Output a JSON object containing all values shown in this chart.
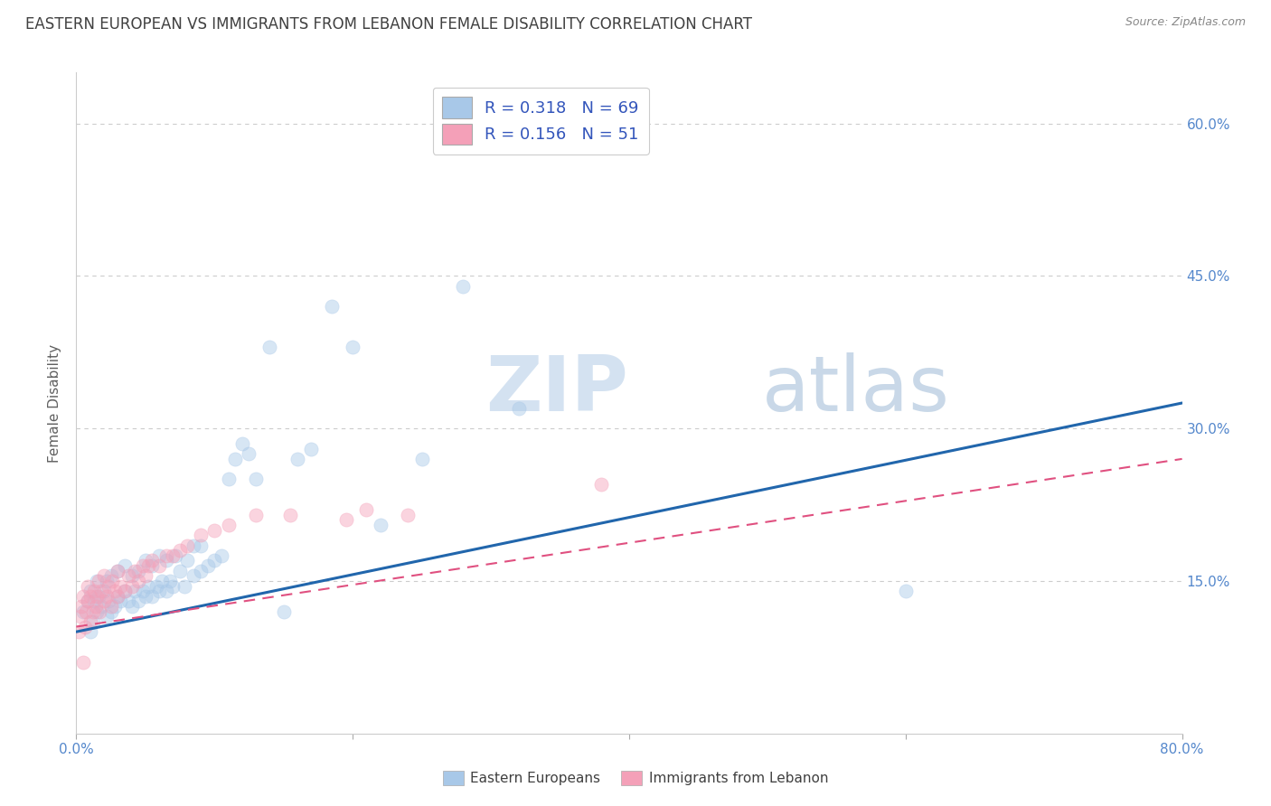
{
  "title": "EASTERN EUROPEAN VS IMMIGRANTS FROM LEBANON FEMALE DISABILITY CORRELATION CHART",
  "source": "Source: ZipAtlas.com",
  "ylabel": "Female Disability",
  "xlim": [
    0.0,
    0.8
  ],
  "ylim": [
    0.0,
    0.65
  ],
  "ytick_positions": [
    0.15,
    0.3,
    0.45,
    0.6
  ],
  "ytick_labels": [
    "15.0%",
    "30.0%",
    "45.0%",
    "60.0%"
  ],
  "grid_yticks": [
    0.15,
    0.3,
    0.45,
    0.6
  ],
  "blue_color": "#a8c8e8",
  "pink_color": "#f4a0b8",
  "blue_line_color": "#2166ac",
  "pink_line_color": "#e05080",
  "legend_R1": "R = 0.318",
  "legend_N1": "N = 69",
  "legend_R2": "R = 0.156",
  "legend_N2": "N = 51",
  "legend_label1": "Eastern Europeans",
  "legend_label2": "Immigrants from Lebanon",
  "watermark_zip": "ZIP",
  "watermark_atlas": "atlas",
  "blue_scatter_x": [
    0.005,
    0.008,
    0.01,
    0.01,
    0.012,
    0.013,
    0.015,
    0.015,
    0.016,
    0.018,
    0.02,
    0.022,
    0.022,
    0.023,
    0.025,
    0.025,
    0.028,
    0.03,
    0.03,
    0.032,
    0.035,
    0.035,
    0.038,
    0.04,
    0.04,
    0.042,
    0.045,
    0.045,
    0.048,
    0.05,
    0.05,
    0.052,
    0.055,
    0.055,
    0.058,
    0.06,
    0.06,
    0.062,
    0.065,
    0.065,
    0.068,
    0.07,
    0.072,
    0.075,
    0.078,
    0.08,
    0.085,
    0.085,
    0.09,
    0.09,
    0.095,
    0.1,
    0.105,
    0.11,
    0.115,
    0.12,
    0.125,
    0.13,
    0.14,
    0.15,
    0.16,
    0.17,
    0.185,
    0.2,
    0.22,
    0.25,
    0.28,
    0.32,
    0.6
  ],
  "blue_scatter_y": [
    0.12,
    0.13,
    0.1,
    0.14,
    0.11,
    0.13,
    0.12,
    0.15,
    0.135,
    0.125,
    0.14,
    0.115,
    0.15,
    0.13,
    0.12,
    0.155,
    0.125,
    0.135,
    0.16,
    0.13,
    0.14,
    0.165,
    0.13,
    0.125,
    0.155,
    0.14,
    0.13,
    0.16,
    0.14,
    0.135,
    0.17,
    0.145,
    0.135,
    0.165,
    0.145,
    0.14,
    0.175,
    0.15,
    0.14,
    0.17,
    0.15,
    0.145,
    0.175,
    0.16,
    0.145,
    0.17,
    0.155,
    0.185,
    0.16,
    0.185,
    0.165,
    0.17,
    0.175,
    0.25,
    0.27,
    0.285,
    0.275,
    0.25,
    0.38,
    0.12,
    0.27,
    0.28,
    0.42,
    0.38,
    0.205,
    0.27,
    0.44,
    0.32,
    0.14
  ],
  "pink_scatter_x": [
    0.002,
    0.003,
    0.004,
    0.005,
    0.006,
    0.007,
    0.008,
    0.008,
    0.01,
    0.01,
    0.012,
    0.013,
    0.014,
    0.015,
    0.016,
    0.017,
    0.018,
    0.02,
    0.02,
    0.022,
    0.023,
    0.025,
    0.026,
    0.028,
    0.03,
    0.03,
    0.032,
    0.035,
    0.038,
    0.04,
    0.042,
    0.045,
    0.048,
    0.05,
    0.052,
    0.055,
    0.06,
    0.065,
    0.07,
    0.075,
    0.08,
    0.09,
    0.1,
    0.11,
    0.13,
    0.155,
    0.195,
    0.21,
    0.24,
    0.38,
    0.005
  ],
  "pink_scatter_y": [
    0.1,
    0.115,
    0.125,
    0.135,
    0.105,
    0.12,
    0.13,
    0.145,
    0.11,
    0.135,
    0.12,
    0.14,
    0.125,
    0.135,
    0.15,
    0.12,
    0.14,
    0.13,
    0.155,
    0.135,
    0.145,
    0.125,
    0.15,
    0.14,
    0.135,
    0.16,
    0.145,
    0.14,
    0.155,
    0.145,
    0.16,
    0.15,
    0.165,
    0.155,
    0.165,
    0.17,
    0.165,
    0.175,
    0.175,
    0.18,
    0.185,
    0.195,
    0.2,
    0.205,
    0.215,
    0.215,
    0.21,
    0.22,
    0.215,
    0.245,
    0.07
  ],
  "blue_trend_x": [
    0.0,
    0.8
  ],
  "blue_trend_y": [
    0.1,
    0.325
  ],
  "pink_trend_x": [
    0.0,
    0.8
  ],
  "pink_trend_y": [
    0.105,
    0.27
  ],
  "background_color": "#ffffff",
  "title_color": "#404040",
  "title_fontsize": 12,
  "axis_label_color": "#606060",
  "tick_color": "#5588cc",
  "legend_text_color": "#3355bb",
  "scatter_size": 120,
  "scatter_alpha": 0.45,
  "line_width": 2.2
}
